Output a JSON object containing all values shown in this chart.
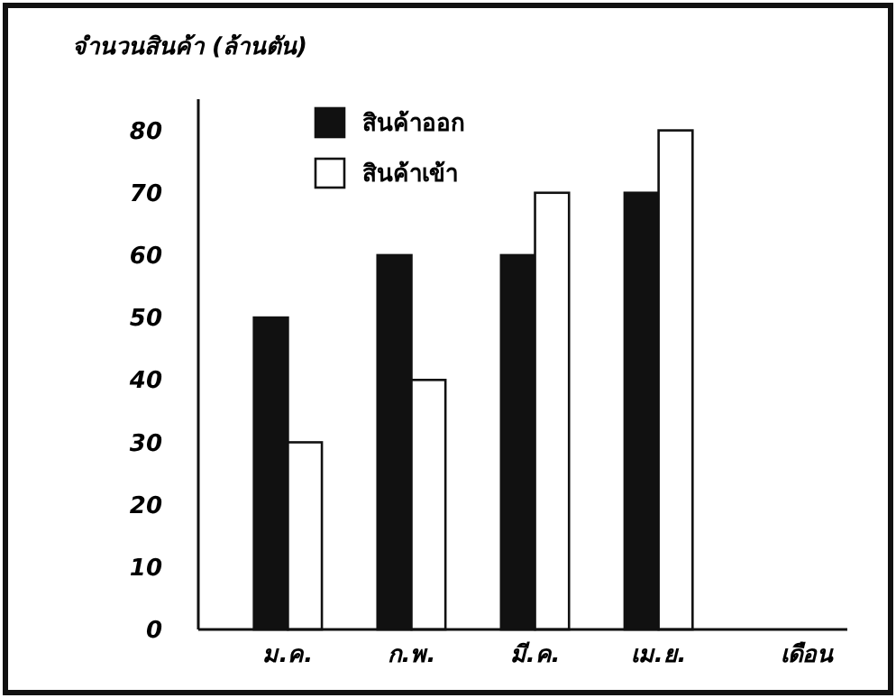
{
  "chart_data": {
    "type": "bar",
    "ylabel": "จำนวนสินค้า (ล้านตัน)",
    "xlabel": "เดือน",
    "categories": [
      "ม.ค.",
      "ก.พ.",
      "มี.ค.",
      "เม.ย."
    ],
    "series": [
      {
        "name": "สินค้าออก",
        "color": "#111111",
        "values": [
          50,
          60,
          60,
          70
        ]
      },
      {
        "name": "สินค้าเข้า",
        "color": "#ffffff",
        "values": [
          30,
          40,
          70,
          80
        ]
      }
    ],
    "ylim": [
      0,
      85
    ],
    "yticks": [
      0,
      10,
      20,
      30,
      40,
      50,
      60,
      70,
      80
    ],
    "grid": false,
    "legend": "top left"
  }
}
